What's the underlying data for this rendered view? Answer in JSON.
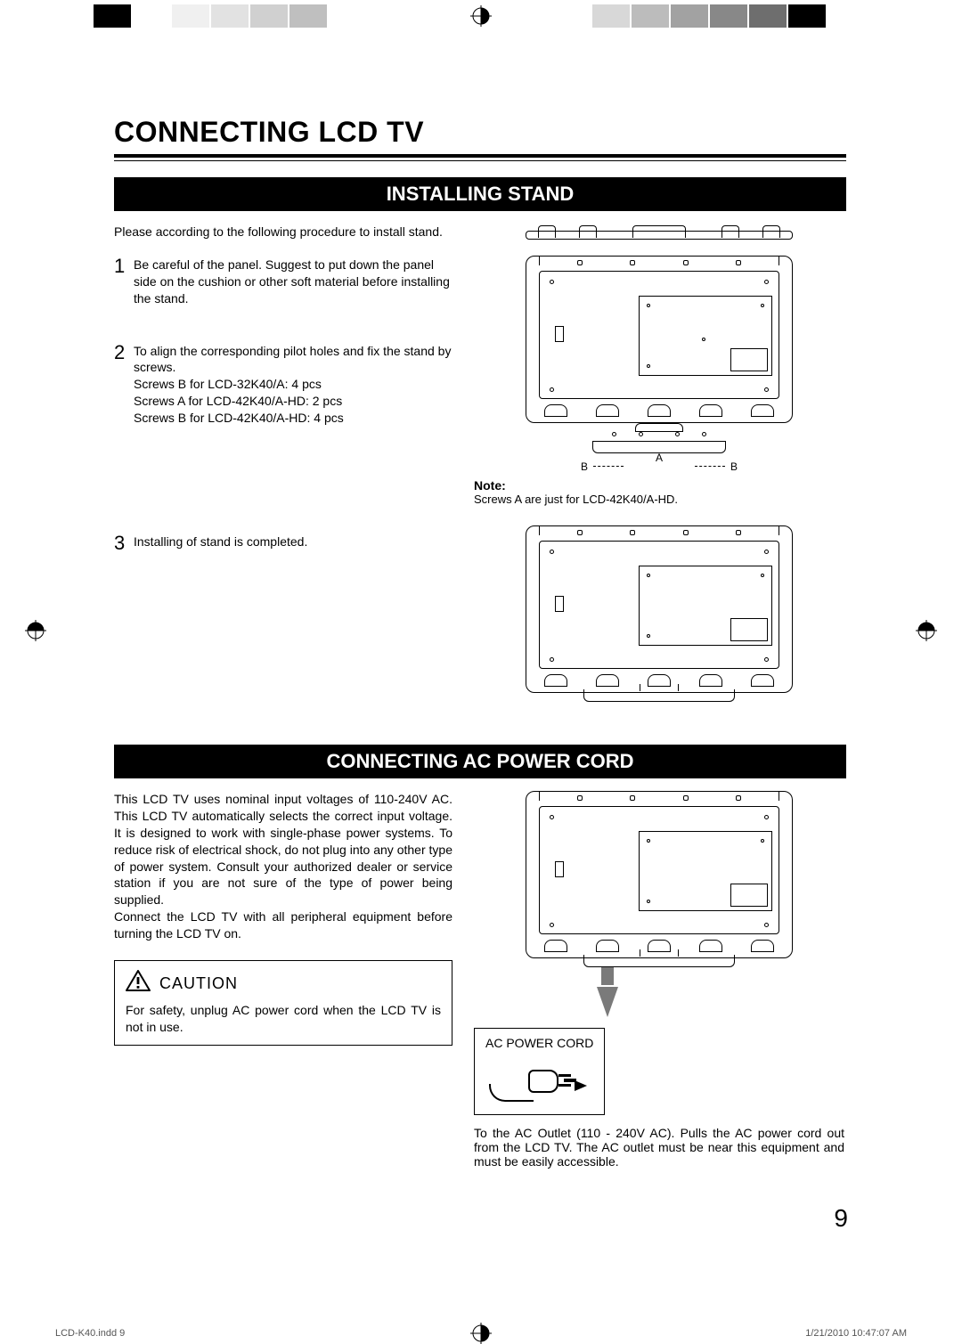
{
  "registration": {
    "left_chip_colors": [
      "#ffffff",
      "#000000",
      "#ffffff",
      "#f0f0f0",
      "#e2e2e2",
      "#d0d0d0",
      "#bfbfbf",
      "#ffffff"
    ],
    "right_chip_colors": [
      "#ffffff",
      "#d8d8d8",
      "#bcbcbc",
      "#a2a2a2",
      "#888888",
      "#6e6e6e",
      "#000000",
      "#ffffff"
    ]
  },
  "page": {
    "title": "CONNECTING LCD TV",
    "number": "9"
  },
  "section1": {
    "heading": "INSTALLING STAND",
    "intro": "Please according to the following procedure to install stand.",
    "steps": [
      {
        "n": "1",
        "text": "Be careful of the panel. Suggest to put down the panel side on the cushion or other soft material before installing the stand."
      },
      {
        "n": "2",
        "text": "To align the corresponding pilot holes and fix the stand by screws.\nScrews B for LCD-32K40/A: 4 pcs\nScrews A for LCD-42K40/A-HD: 2 pcs\nScrews B for LCD-42K40/A-HD: 4 pcs"
      },
      {
        "n": "3",
        "text": "Installing of stand is completed."
      }
    ],
    "note_label": "Note:",
    "note_text": "Screws A are just  for LCD-42K40/A-HD.",
    "stand_labels": {
      "A": "A",
      "B_left": "B",
      "B_right": "B"
    }
  },
  "section2": {
    "heading": "CONNECTING AC POWER CORD",
    "body": "This LCD TV uses nominal input voltages of 110-240V AC. This LCD TV automatically selects the correct input voltage. It is designed to work with single-phase power systems. To reduce risk of electrical shock, do not plug into any other type of power system. Consult your authorized dealer or service station if you are not sure of the type of power being supplied.\nConnect the LCD TV with all peripheral equipment before turning the LCD TV on.",
    "caution_head": "CAUTION",
    "caution_text": "For safety, unplug AC power cord when the LCD TV is not in use.",
    "ac_label": "AC POWER CORD",
    "fig_caption": "To the AC Outlet (110 - 240V AC). Pulls the AC power cord out from the LCD TV. The AC outlet must be near this equipment and must be easily accessible."
  },
  "footer": {
    "filename": "LCD-K40.indd   9",
    "timestamp": "1/21/2010   10:47:07 AM"
  },
  "colors": {
    "section_bg": "#000000",
    "section_fg": "#ffffff",
    "arrow_gray": "#7a7a7a",
    "footer_text": "#555555"
  }
}
